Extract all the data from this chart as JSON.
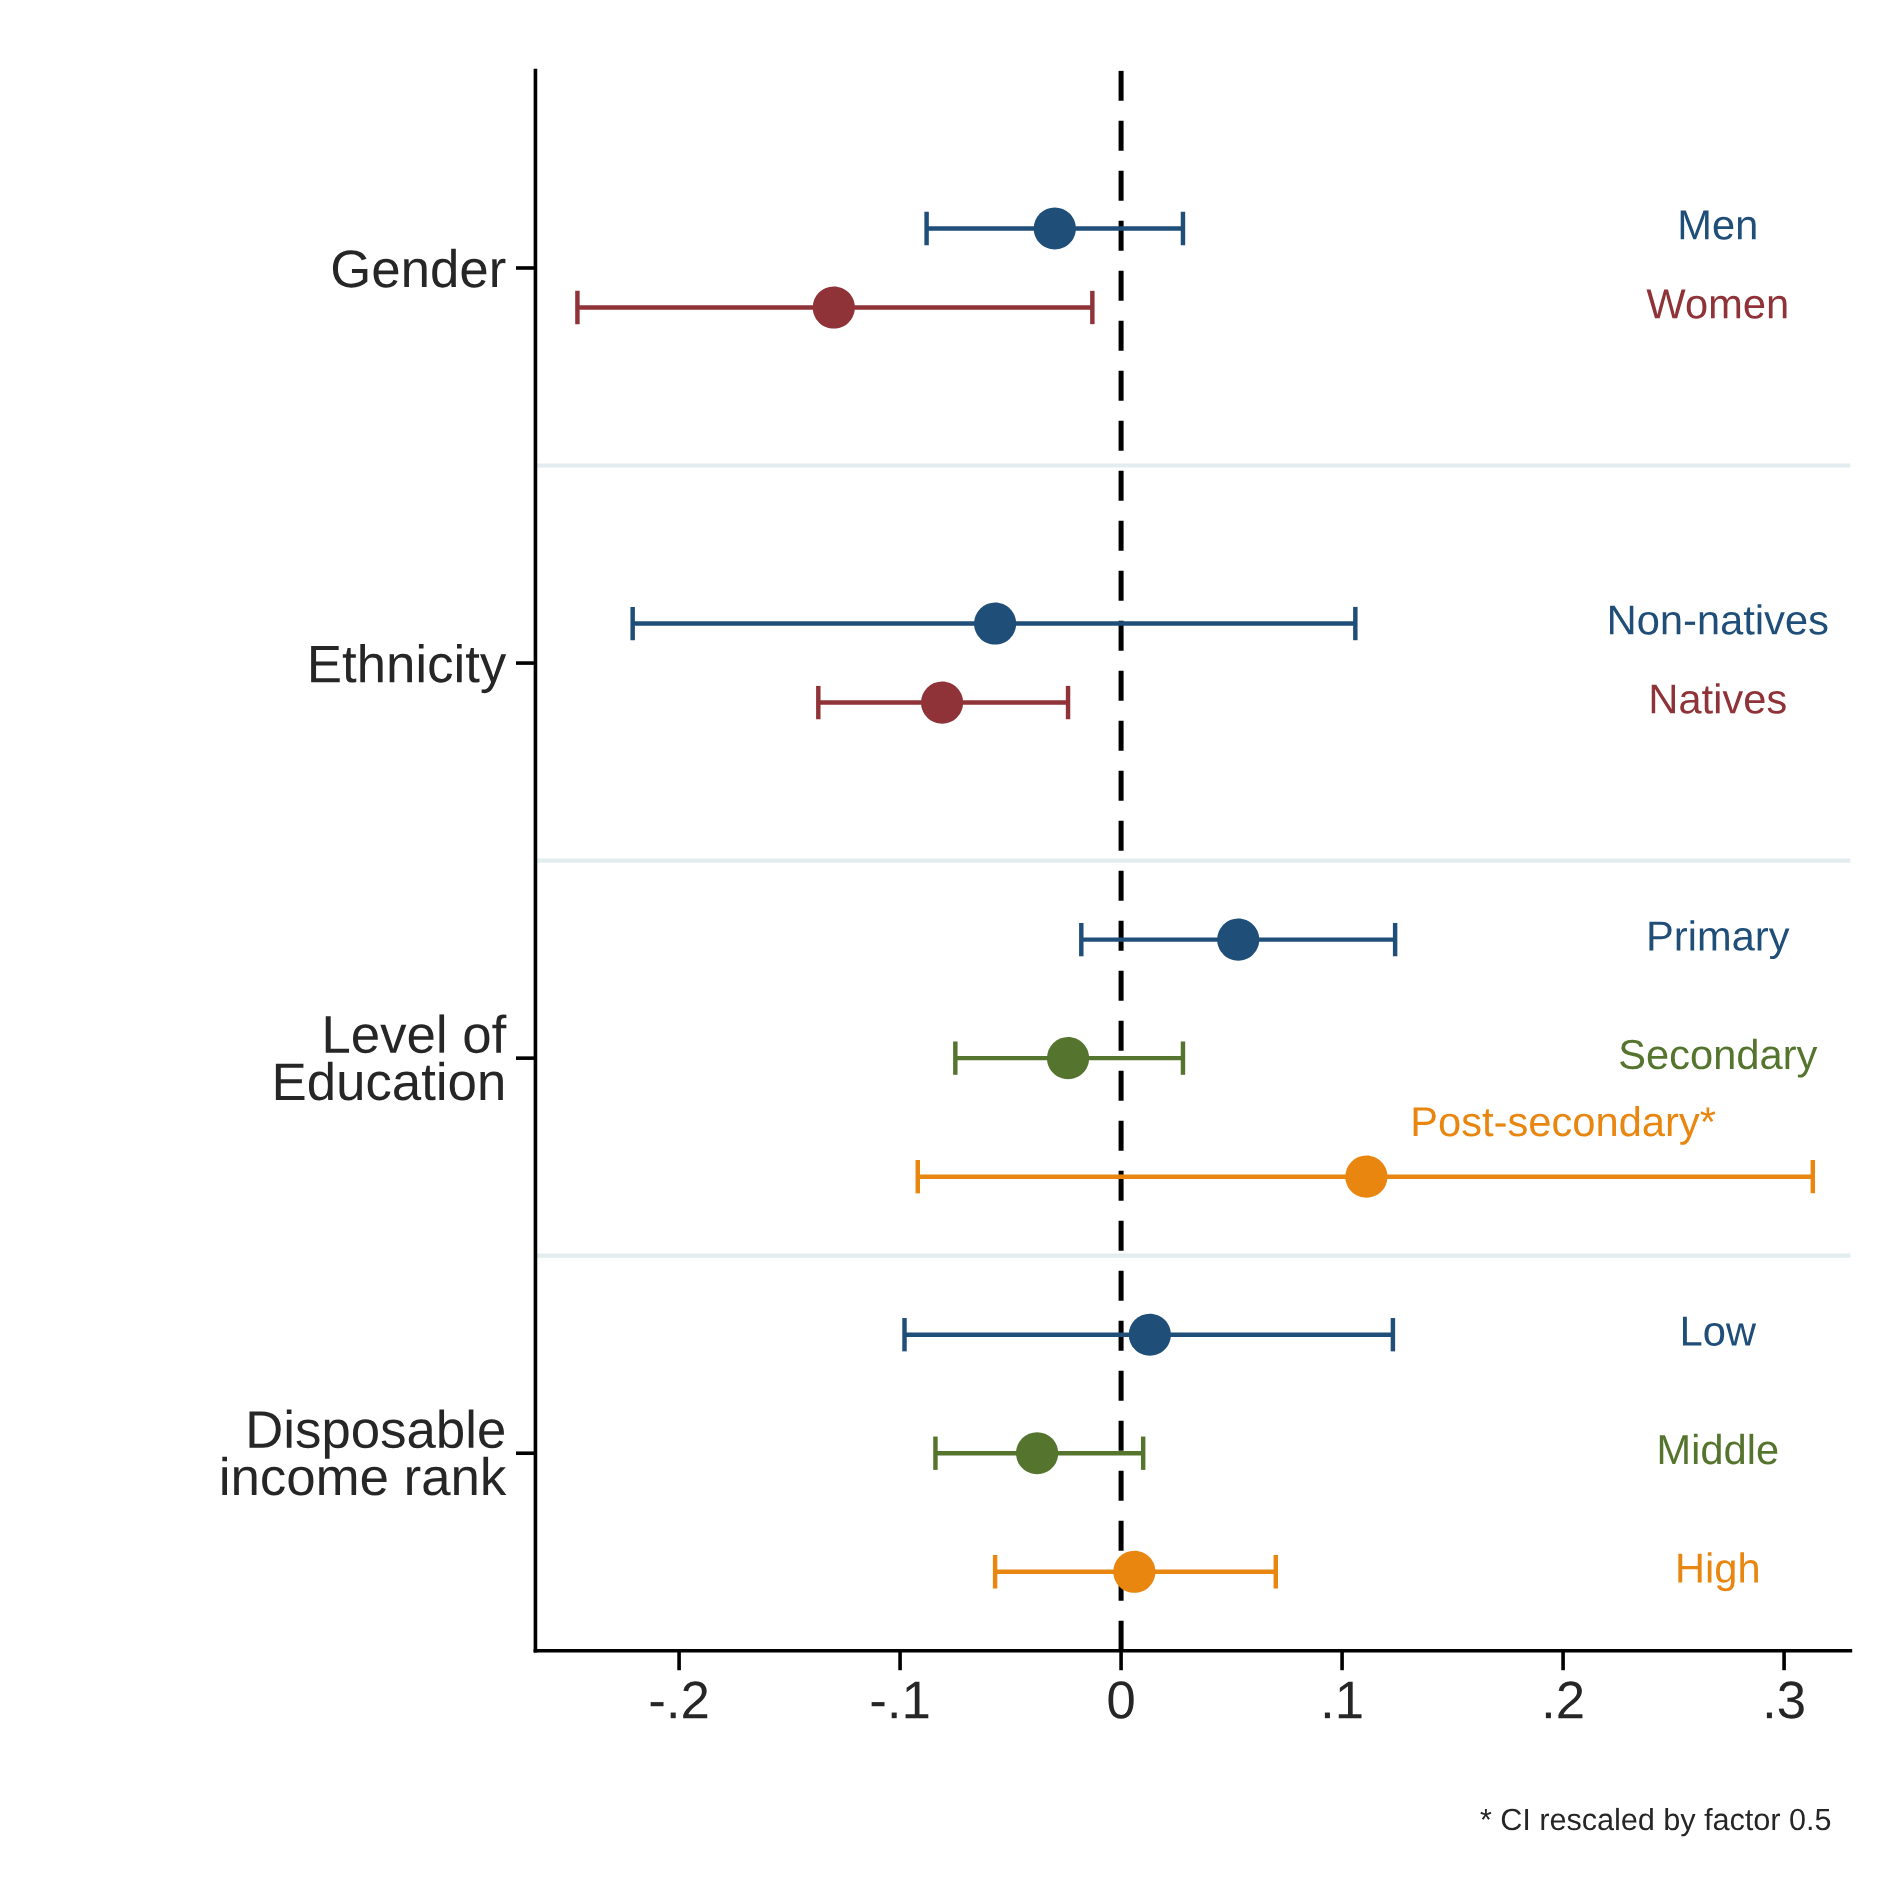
{
  "chart_data": {
    "type": "scatter",
    "orientation": "horizontal",
    "marker": "circle",
    "categories": [
      "Gender",
      "Ethnicity",
      "Level of\nEducation",
      "Disposable\nincome rank"
    ],
    "series": [
      {
        "name": "Men",
        "color": "#1f4e79",
        "values": [
          -0.03,
          null,
          null,
          null
        ],
        "errors": [
          [
            -0.088,
            0.028
          ],
          null,
          null,
          null
        ]
      },
      {
        "name": "Women",
        "color": "#8f3339",
        "values": [
          -0.13,
          null,
          null,
          null
        ],
        "errors": [
          [
            -0.246,
            -0.013
          ],
          null,
          null,
          null
        ]
      },
      {
        "name": "Non-natives",
        "color": "#1f4e79",
        "values": [
          null,
          -0.057,
          null,
          null
        ],
        "errors": [
          null,
          [
            -0.221,
            0.106
          ],
          null,
          null
        ]
      },
      {
        "name": "Natives",
        "color": "#8f3339",
        "values": [
          null,
          -0.081,
          null,
          null
        ],
        "errors": [
          null,
          [
            -0.137,
            -0.024
          ],
          null,
          null
        ]
      },
      {
        "name": "Primary",
        "color": "#1f4e79",
        "values": [
          null,
          null,
          0.053,
          null
        ],
        "errors": [
          null,
          null,
          [
            -0.018,
            0.124
          ],
          null
        ]
      },
      {
        "name": "Secondary",
        "color": "#55752f",
        "values": [
          null,
          null,
          -0.024,
          null
        ],
        "errors": [
          null,
          null,
          [
            -0.075,
            0.028
          ],
          null
        ]
      },
      {
        "name": "Post-secondary*",
        "color": "#e8860f",
        "values": [
          null,
          null,
          0.111,
          null
        ],
        "errors": [
          null,
          null,
          [
            -0.092,
            0.313
          ],
          null
        ]
      },
      {
        "name": "Low",
        "color": "#1f4e79",
        "values": [
          null,
          null,
          null,
          0.013
        ],
        "errors": [
          null,
          null,
          null,
          [
            -0.098,
            0.123
          ]
        ]
      },
      {
        "name": "Middle",
        "color": "#55752f",
        "values": [
          null,
          null,
          null,
          -0.038
        ],
        "errors": [
          null,
          null,
          null,
          [
            -0.084,
            0.01
          ]
        ]
      },
      {
        "name": "High",
        "color": "#e8860f",
        "values": [
          null,
          null,
          null,
          0.006
        ],
        "errors": [
          null,
          null,
          null,
          [
            -0.057,
            0.07
          ]
        ]
      }
    ],
    "xlim": [
      -0.265,
      0.33
    ],
    "xticks": [
      {
        "value": -0.2,
        "label": "-.2"
      },
      {
        "value": -0.1,
        "label": "-.1"
      },
      0,
      {
        "value": 0.1,
        "label": ".1"
      },
      {
        "value": 0.2,
        "label": ".2"
      },
      {
        "value": 0.3,
        "label": ".3"
      }
    ],
    "ref_lines": [
      {
        "axis": "x",
        "value": 0,
        "line_style": "dashed",
        "color": "#000000"
      }
    ],
    "grid": false,
    "legend": false,
    "annotations": [
      "* CI rescaled by factor 0.5"
    ]
  }
}
